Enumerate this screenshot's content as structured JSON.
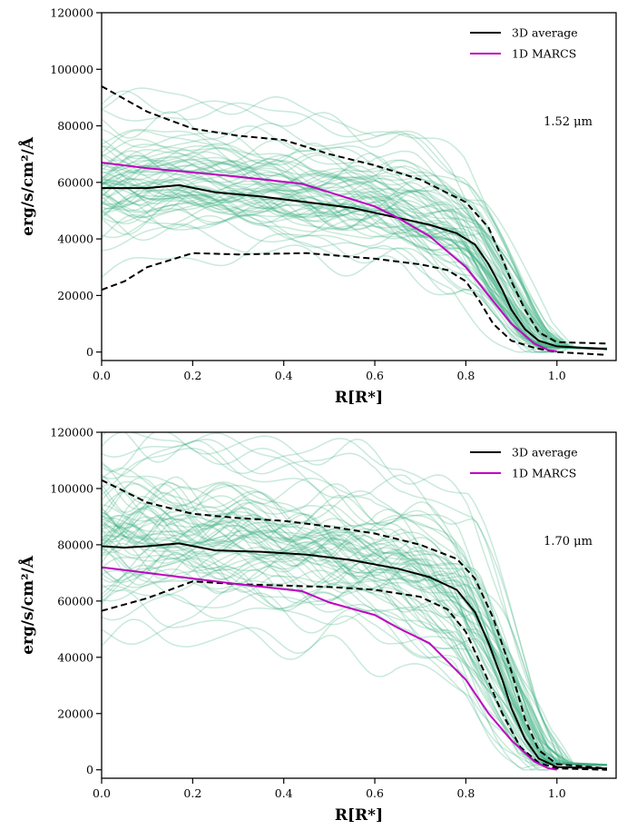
{
  "chart_data": [
    {
      "type": "line",
      "annotation": "1.52 μm",
      "xlabel": "R[R*]",
      "ylabel": "erg/s/cm²/Å",
      "xlim": [
        0.0,
        1.13
      ],
      "ylim": [
        -3000,
        120000
      ],
      "xticks": [
        "0.0",
        "0.2",
        "0.4",
        "0.6",
        "0.8",
        "1.0"
      ],
      "yticks": [
        "0",
        "20000",
        "40000",
        "60000",
        "80000",
        "100000",
        "120000"
      ],
      "legend": {
        "position": "top-right",
        "entries": [
          {
            "label": "3D average",
            "color": "#000000"
          },
          {
            "label": "1D MARCS",
            "color": "#c000c0"
          }
        ]
      },
      "series": [
        {
          "name": "3D average",
          "color": "#000000",
          "style": "solid",
          "x": [
            0.0,
            0.05,
            0.1,
            0.17,
            0.25,
            0.35,
            0.45,
            0.55,
            0.65,
            0.72,
            0.78,
            0.82,
            0.85,
            0.88,
            0.9,
            0.93,
            0.96,
            1.0,
            1.11
          ],
          "y": [
            58000,
            58000,
            58000,
            59000,
            56500,
            55000,
            53000,
            51000,
            47500,
            45000,
            42000,
            38000,
            31000,
            22000,
            15000,
            8000,
            4000,
            2000,
            1000
          ]
        },
        {
          "name": "",
          "color": "#000000",
          "style": "dashed",
          "x": [
            0.0,
            0.1,
            0.2,
            0.3,
            0.4,
            0.5,
            0.6,
            0.7,
            0.8,
            0.85,
            0.88,
            0.9,
            0.93,
            0.96,
            1.0,
            1.11
          ],
          "y": [
            94000,
            85000,
            79000,
            76500,
            75000,
            70000,
            66000,
            61000,
            53000,
            44000,
            33000,
            25000,
            15000,
            7000,
            3500,
            3000
          ]
        },
        {
          "name": "",
          "color": "#000000",
          "style": "dashed",
          "x": [
            0.0,
            0.05,
            0.1,
            0.2,
            0.3,
            0.45,
            0.6,
            0.7,
            0.76,
            0.8,
            0.83,
            0.86,
            0.9,
            0.95,
            1.0,
            1.11
          ],
          "y": [
            22000,
            25000,
            30000,
            35000,
            34500,
            35000,
            33000,
            31000,
            29000,
            25000,
            18000,
            10000,
            4000,
            1500,
            0,
            -1000
          ]
        },
        {
          "name": "1D MARCS",
          "color": "#c000c0",
          "style": "solid",
          "x": [
            0.0,
            0.1,
            0.2,
            0.3,
            0.44,
            0.5,
            0.6,
            0.65,
            0.72,
            0.8,
            0.85,
            0.9,
            0.95,
            0.98,
            1.0
          ],
          "y": [
            67000,
            65000,
            63500,
            62000,
            59500,
            56500,
            51500,
            47500,
            41000,
            30000,
            20000,
            10000,
            3000,
            800,
            200
          ]
        }
      ]
    },
    {
      "type": "line",
      "annotation": "1.70 μm",
      "xlabel": "R[R*]",
      "ylabel": "erg/s/cm²/Å",
      "xlim": [
        0.0,
        1.13
      ],
      "ylim": [
        -3000,
        120000
      ],
      "xticks": [
        "0.0",
        "0.2",
        "0.4",
        "0.6",
        "0.8",
        "1.0"
      ],
      "yticks": [
        "0",
        "20000",
        "40000",
        "60000",
        "80000",
        "100000",
        "120000"
      ],
      "legend": {
        "position": "top-right",
        "entries": [
          {
            "label": "3D average",
            "color": "#000000"
          },
          {
            "label": "1D MARCS",
            "color": "#c000c0"
          }
        ]
      },
      "series": [
        {
          "name": "3D average",
          "color": "#000000",
          "style": "solid",
          "x": [
            0.0,
            0.05,
            0.1,
            0.17,
            0.25,
            0.35,
            0.45,
            0.55,
            0.65,
            0.72,
            0.78,
            0.82,
            0.85,
            0.88,
            0.9,
            0.93,
            0.96,
            1.0,
            1.11
          ],
          "y": [
            79500,
            79000,
            79500,
            80500,
            78000,
            77500,
            76500,
            74500,
            71500,
            68500,
            64000,
            56000,
            45000,
            32000,
            22000,
            11000,
            4000,
            1000,
            500
          ]
        },
        {
          "name": "",
          "color": "#000000",
          "style": "dashed",
          "x": [
            0.0,
            0.1,
            0.2,
            0.3,
            0.4,
            0.5,
            0.6,
            0.7,
            0.78,
            0.82,
            0.86,
            0.9,
            0.93,
            0.96,
            1.0,
            1.11
          ],
          "y": [
            103000,
            95000,
            91000,
            89500,
            88500,
            86500,
            84000,
            80000,
            75000,
            68000,
            54000,
            35000,
            18000,
            7000,
            2000,
            500
          ]
        },
        {
          "name": "",
          "color": "#000000",
          "style": "dashed",
          "x": [
            0.0,
            0.1,
            0.2,
            0.3,
            0.4,
            0.5,
            0.6,
            0.7,
            0.76,
            0.8,
            0.84,
            0.88,
            0.92,
            0.96,
            1.0,
            1.11
          ],
          "y": [
            56500,
            61000,
            67000,
            66000,
            65500,
            65000,
            64000,
            61500,
            57000,
            49000,
            35000,
            20000,
            8000,
            2500,
            500,
            0
          ]
        },
        {
          "name": "1D MARCS",
          "color": "#c000c0",
          "style": "solid",
          "x": [
            0.0,
            0.1,
            0.2,
            0.3,
            0.44,
            0.5,
            0.6,
            0.65,
            0.72,
            0.8,
            0.85,
            0.9,
            0.95,
            0.98,
            1.0
          ],
          "y": [
            72000,
            70000,
            68000,
            66000,
            63500,
            59500,
            55000,
            50500,
            45000,
            32000,
            20000,
            10500,
            3000,
            600,
            0
          ]
        }
      ]
    }
  ]
}
